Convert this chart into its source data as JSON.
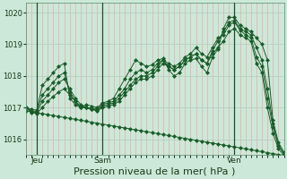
{
  "bg_color": "#cce8d8",
  "grid_color_v": "#e8a0a0",
  "grid_color_h": "#b0ccbc",
  "line_color": "#1a5c2a",
  "xlabel": "Pression niveau de la mer( hPa )",
  "xlabel_fontsize": 8,
  "ylim": [
    1015.5,
    1020.3
  ],
  "yticks": [
    1016,
    1017,
    1018,
    1019,
    1020
  ],
  "xtick_labels": [
    "Jeu",
    "Sam",
    "Ven"
  ],
  "xtick_positions": [
    2,
    14,
    38
  ],
  "vline_positions": [
    2,
    14,
    38
  ],
  "n_points": 48,
  "series": [
    [
      1017.0,
      1016.95,
      1016.92,
      1017.7,
      1017.9,
      1018.1,
      1018.3,
      1018.4,
      1017.3,
      1017.1,
      1017.0,
      1017.1,
      1017.05,
      1017.0,
      1017.15,
      1017.2,
      1017.3,
      1017.6,
      1017.9,
      1018.2,
      1018.5,
      1018.4,
      1018.3,
      1018.35,
      1018.5,
      1018.55,
      1018.2,
      1018.0,
      1018.1,
      1018.4,
      1018.5,
      1018.55,
      1018.3,
      1018.1,
      1018.6,
      1018.85,
      1019.5,
      1019.85,
      1019.85,
      1019.6,
      1019.5,
      1019.4,
      1019.2,
      1019.0,
      1018.5,
      1016.6,
      1015.9,
      1015.6
    ],
    [
      1017.0,
      1016.9,
      1016.88,
      1017.4,
      1017.6,
      1017.8,
      1018.0,
      1018.1,
      1017.5,
      1017.2,
      1017.0,
      1017.0,
      1016.98,
      1016.95,
      1017.1,
      1017.15,
      1017.2,
      1017.4,
      1017.6,
      1017.9,
      1018.1,
      1018.2,
      1018.1,
      1018.2,
      1018.4,
      1018.5,
      1018.3,
      1018.2,
      1018.3,
      1018.5,
      1018.6,
      1018.7,
      1018.5,
      1018.4,
      1018.8,
      1019.1,
      1019.4,
      1019.7,
      1019.75,
      1019.5,
      1019.4,
      1019.3,
      1018.9,
      1018.5,
      1017.6,
      1016.5,
      1015.8,
      1015.55
    ],
    [
      1017.0,
      1016.88,
      1016.85,
      1017.2,
      1017.4,
      1017.6,
      1017.8,
      1017.9,
      1017.6,
      1017.3,
      1017.1,
      1017.0,
      1016.96,
      1016.92,
      1017.05,
      1017.1,
      1017.15,
      1017.3,
      1017.5,
      1017.7,
      1017.9,
      1018.0,
      1018.0,
      1018.1,
      1018.3,
      1018.5,
      1018.4,
      1018.3,
      1018.4,
      1018.6,
      1018.7,
      1018.9,
      1018.7,
      1018.6,
      1018.9,
      1019.2,
      1019.3,
      1019.6,
      1019.7,
      1019.45,
      1019.3,
      1019.2,
      1018.6,
      1018.3,
      1017.3,
      1016.4,
      1015.8,
      1015.55
    ],
    [
      1017.0,
      1016.85,
      1016.82,
      1017.0,
      1017.2,
      1017.35,
      1017.5,
      1017.6,
      1017.4,
      1017.2,
      1017.05,
      1017.0,
      1016.94,
      1016.9,
      1017.0,
      1017.05,
      1017.1,
      1017.2,
      1017.4,
      1017.6,
      1017.8,
      1017.9,
      1017.9,
      1018.0,
      1018.2,
      1018.4,
      1018.3,
      1018.2,
      1018.3,
      1018.5,
      1018.6,
      1018.7,
      1018.5,
      1018.4,
      1018.7,
      1018.9,
      1019.1,
      1019.4,
      1019.5,
      1019.3,
      1019.2,
      1019.1,
      1018.4,
      1018.1,
      1017.0,
      1016.2,
      1015.7,
      1015.5
    ],
    [
      1016.9,
      1016.87,
      1016.84,
      1016.81,
      1016.78,
      1016.75,
      1016.72,
      1016.69,
      1016.66,
      1016.63,
      1016.6,
      1016.57,
      1016.54,
      1016.51,
      1016.48,
      1016.45,
      1016.42,
      1016.39,
      1016.36,
      1016.33,
      1016.3,
      1016.27,
      1016.24,
      1016.21,
      1016.18,
      1016.15,
      1016.12,
      1016.09,
      1016.06,
      1016.03,
      1016.0,
      1015.97,
      1015.94,
      1015.91,
      1015.88,
      1015.85,
      1015.82,
      1015.79,
      1015.76,
      1015.73,
      1015.7,
      1015.67,
      1015.64,
      1015.61,
      1015.58,
      1015.55,
      1015.52,
      1015.5
    ]
  ]
}
